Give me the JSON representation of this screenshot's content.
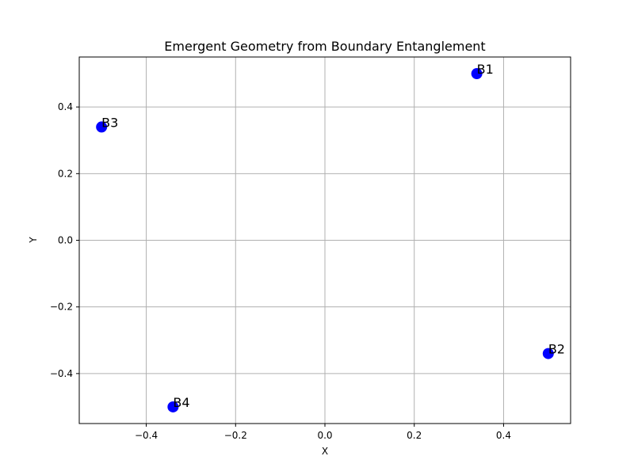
{
  "chart_data": {
    "type": "scatter",
    "title": "Emergent Geometry from Boundary Entanglement",
    "xlabel": "X",
    "ylabel": "Y",
    "xlim": [
      -0.55,
      0.55
    ],
    "ylim": [
      -0.55,
      0.55
    ],
    "xticks": [
      -0.4,
      -0.2,
      0.0,
      0.2,
      0.4
    ],
    "yticks": [
      -0.4,
      -0.2,
      0.0,
      0.2,
      0.4
    ],
    "xtick_labels": [
      "−0.4",
      "−0.2",
      "0.0",
      "0.2",
      "0.4"
    ],
    "ytick_labels": [
      "−0.4",
      "−0.2",
      "0.0",
      "0.2",
      "0.4"
    ],
    "grid": true,
    "marker_color": "#0000ff",
    "points": [
      {
        "label": "B1",
        "x": 0.34,
        "y": 0.5
      },
      {
        "label": "B2",
        "x": 0.5,
        "y": -0.34
      },
      {
        "label": "B3",
        "x": -0.5,
        "y": 0.34
      },
      {
        "label": "B4",
        "x": -0.34,
        "y": -0.5
      }
    ]
  }
}
